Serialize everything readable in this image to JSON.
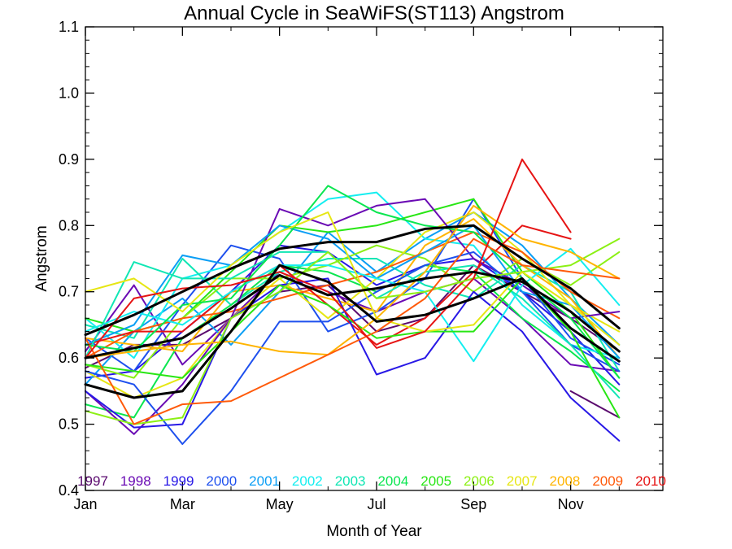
{
  "chart_data": {
    "type": "line",
    "title": "Annual Cycle in SeaWiFS(ST113) Angstrom",
    "xlabel": "Month of Year",
    "ylabel": "Angstrom",
    "xlim": [
      1,
      12.9
    ],
    "ylim": [
      0.4,
      1.1
    ],
    "x_ticks": [
      {
        "value": 1,
        "label": "Jan"
      },
      {
        "value": 3,
        "label": "Mar"
      },
      {
        "value": 5,
        "label": "May"
      },
      {
        "value": 7,
        "label": "Jul"
      },
      {
        "value": 9,
        "label": "Sep"
      },
      {
        "value": 11,
        "label": "Nov"
      }
    ],
    "y_ticks": [
      {
        "value": 0.4,
        "label": "0.4"
      },
      {
        "value": 0.5,
        "label": "0.5"
      },
      {
        "value": 0.6,
        "label": "0.6"
      },
      {
        "value": 0.7,
        "label": "0.7"
      },
      {
        "value": 0.8,
        "label": "0.8"
      },
      {
        "value": 0.9,
        "label": "0.9"
      },
      {
        "value": 1.0,
        "label": "1.0"
      },
      {
        "value": 1.1,
        "label": "1.1"
      }
    ],
    "x": [
      1,
      2,
      3,
      4,
      5,
      6,
      7,
      8,
      9,
      10,
      11,
      12
    ],
    "legend_placement": "bottom",
    "series": [
      {
        "name": "1997",
        "color": "#5a0a6e",
        "values": [
          null,
          null,
          null,
          null,
          null,
          null,
          null,
          null,
          null,
          null,
          0.55,
          0.51
        ]
      },
      {
        "name": "1998",
        "color": "#6a0ab4",
        "values": [
          0.55,
          0.485,
          0.56,
          0.66,
          0.825,
          0.8,
          0.83,
          0.84,
          0.75,
          0.71,
          0.66,
          0.67
        ]
      },
      {
        "name": "1999",
        "color": "#2818e6",
        "values": [
          0.55,
          0.495,
          0.5,
          0.66,
          0.71,
          0.72,
          0.575,
          0.6,
          0.7,
          0.64,
          0.54,
          0.475
        ]
      },
      {
        "name": "2000",
        "color": "#1e50ee",
        "values": [
          0.58,
          0.56,
          0.47,
          0.55,
          0.655,
          0.655,
          0.7,
          0.74,
          0.76,
          0.7,
          0.62,
          0.58
        ]
      },
      {
        "name": "2001",
        "color": "#0a9ef5",
        "values": [
          0.62,
          0.65,
          0.755,
          0.74,
          0.8,
          0.78,
          0.72,
          0.76,
          0.8,
          0.7,
          0.68,
          0.6
        ]
      },
      {
        "name": "2002",
        "color": "#14eef0",
        "values": [
          0.64,
          0.67,
          0.65,
          0.7,
          0.74,
          0.74,
          0.72,
          0.7,
          0.595,
          0.71,
          0.765,
          0.68
        ]
      },
      {
        "name": "2003",
        "color": "#10e6b4",
        "values": [
          0.6,
          0.745,
          0.72,
          0.72,
          0.76,
          0.76,
          0.69,
          0.73,
          0.74,
          0.69,
          0.62,
          0.54
        ]
      },
      {
        "name": "2004",
        "color": "#0ae650",
        "values": [
          0.62,
          0.61,
          0.68,
          0.69,
          0.77,
          0.86,
          0.82,
          0.8,
          0.79,
          0.72,
          0.66,
          0.57
        ]
      },
      {
        "name": "2005",
        "color": "#28e614",
        "values": [
          0.59,
          0.58,
          0.57,
          0.64,
          0.71,
          0.68,
          0.63,
          0.64,
          0.64,
          0.72,
          0.64,
          0.51
        ]
      },
      {
        "name": "2006",
        "color": "#8cf014",
        "values": [
          0.52,
          0.5,
          0.51,
          0.66,
          0.7,
          0.76,
          0.69,
          0.7,
          0.72,
          0.73,
          0.74,
          0.78
        ]
      },
      {
        "name": "2007",
        "color": "#e6e614",
        "values": [
          0.7,
          0.72,
          0.67,
          0.74,
          0.79,
          0.82,
          0.66,
          0.64,
          0.65,
          0.73,
          0.68,
          0.62
        ]
      },
      {
        "name": "2008",
        "color": "#ffb400",
        "values": [
          0.6,
          0.61,
          0.62,
          0.625,
          0.61,
          0.605,
          0.66,
          0.73,
          0.83,
          0.78,
          0.76,
          0.72
        ]
      },
      {
        "name": "2009",
        "color": "#ff5a0a",
        "values": [
          0.63,
          0.5,
          0.53,
          0.535,
          0.57,
          0.605,
          0.64,
          0.69,
          0.78,
          0.74,
          0.73,
          0.72
        ]
      },
      {
        "name": "2010",
        "color": "#e61414",
        "values": [
          0.6,
          0.69,
          0.705,
          0.71,
          0.73,
          0.7,
          0.615,
          0.64,
          0.72,
          0.9,
          0.79,
          null
        ]
      },
      {
        "color": "#000000",
        "values": [
          0.635,
          0.665,
          0.7,
          0.735,
          0.765,
          0.775,
          0.775,
          0.795,
          0.8,
          0.75,
          0.705,
          0.645
        ]
      },
      {
        "color": "#000000",
        "values": [
          0.6,
          0.615,
          0.63,
          0.675,
          0.725,
          0.695,
          0.705,
          0.72,
          0.73,
          0.715,
          0.67,
          0.61
        ]
      },
      {
        "color": "#000000",
        "values": [
          0.56,
          0.54,
          0.55,
          0.64,
          0.74,
          0.715,
          0.655,
          0.665,
          0.69,
          0.72,
          0.645,
          0.595
        ]
      }
    ],
    "extra_lines": [
      {
        "color": "#5a0a6e",
        "values": [
          0.585,
          0.62,
          0.62,
          0.66,
          0.7,
          0.71,
          0.64,
          0.66,
          0.74,
          0.7,
          0.66,
          0.61
        ]
      },
      {
        "color": "#6a0ab4",
        "values": [
          0.61,
          0.71,
          0.59,
          0.66,
          0.73,
          0.7,
          0.67,
          0.7,
          0.72,
          0.66,
          0.59,
          0.58
        ]
      },
      {
        "color": "#2818e6",
        "values": [
          0.57,
          0.58,
          0.64,
          0.7,
          0.77,
          0.76,
          0.71,
          0.74,
          0.75,
          0.7,
          0.64,
          0.56
        ]
      },
      {
        "color": "#1e50ee",
        "values": [
          0.63,
          0.58,
          0.68,
          0.77,
          0.75,
          0.64,
          0.67,
          0.72,
          0.84,
          0.72,
          0.63,
          0.59
        ]
      },
      {
        "color": "#0a9ef5",
        "values": [
          0.56,
          0.64,
          0.69,
          0.62,
          0.7,
          0.79,
          0.73,
          0.78,
          0.82,
          0.77,
          0.69,
          0.62
        ]
      },
      {
        "color": "#14eef0",
        "values": [
          0.66,
          0.6,
          0.72,
          0.74,
          0.79,
          0.84,
          0.85,
          0.78,
          0.77,
          0.68,
          0.62,
          0.6
        ]
      },
      {
        "color": "#10e6b4",
        "values": [
          0.65,
          0.63,
          0.75,
          0.68,
          0.73,
          0.75,
          0.75,
          0.71,
          0.69,
          0.74,
          0.7,
          0.58
        ]
      },
      {
        "color": "#0ae650",
        "values": [
          0.53,
          0.51,
          0.63,
          0.68,
          0.74,
          0.73,
          0.7,
          0.74,
          0.73,
          0.66,
          0.61,
          0.55
        ]
      },
      {
        "color": "#28e614",
        "values": [
          0.66,
          0.64,
          0.66,
          0.73,
          0.8,
          0.79,
          0.8,
          0.82,
          0.84,
          0.73,
          0.67,
          0.57
        ]
      },
      {
        "color": "#8cf014",
        "values": [
          0.59,
          0.57,
          0.66,
          0.72,
          0.72,
          0.74,
          0.77,
          0.75,
          0.7,
          0.75,
          0.71,
          0.76
        ]
      },
      {
        "color": "#e6e614",
        "values": [
          0.58,
          0.54,
          0.57,
          0.66,
          0.72,
          0.66,
          0.72,
          0.79,
          0.82,
          0.76,
          0.68,
          0.64
        ]
      },
      {
        "color": "#ffb400",
        "values": [
          0.63,
          0.62,
          0.61,
          0.7,
          0.71,
          0.69,
          0.67,
          0.77,
          0.81,
          0.74,
          0.69,
          0.6
        ]
      },
      {
        "color": "#ff5a0a",
        "values": [
          0.6,
          0.64,
          0.66,
          0.67,
          0.69,
          0.71,
          0.73,
          0.76,
          0.79,
          0.76,
          0.7,
          0.66
        ]
      },
      {
        "color": "#e61414",
        "values": [
          0.62,
          0.64,
          0.64,
          0.7,
          0.74,
          0.68,
          0.62,
          0.66,
          0.73,
          0.8,
          0.78,
          null
        ]
      }
    ]
  }
}
